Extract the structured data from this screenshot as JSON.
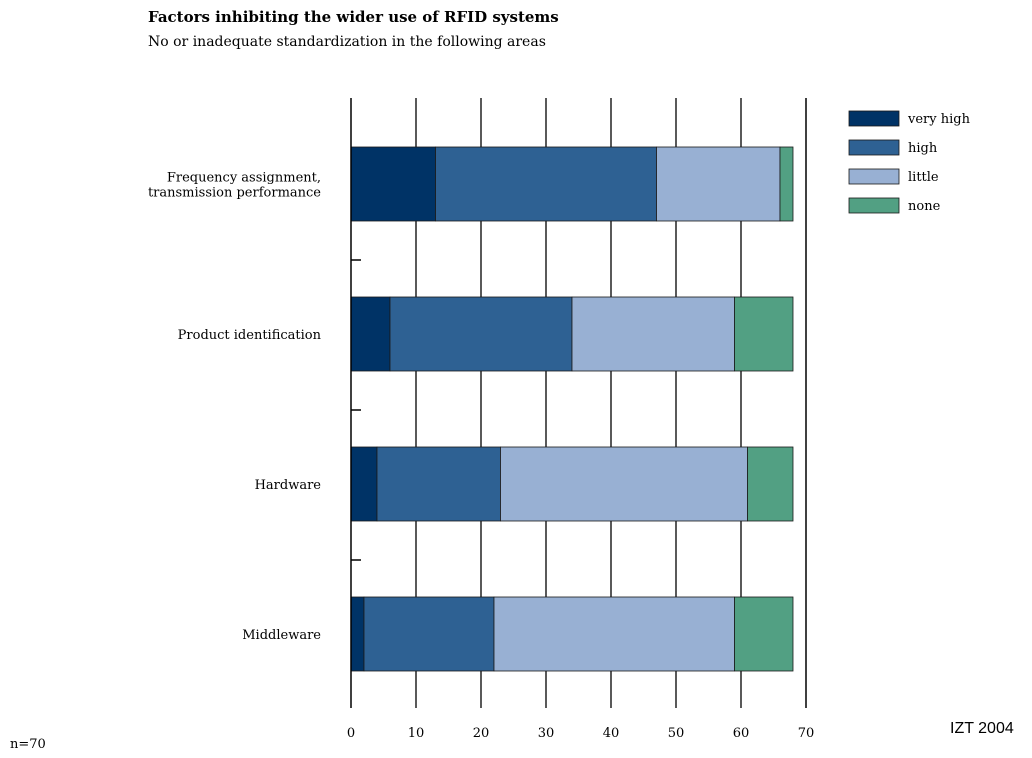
{
  "chart_data": {
    "type": "bar",
    "orientation": "horizontal",
    "stacked": true,
    "title": "Factors inhibiting the wider use of RFID systems",
    "subtitle": "No or inadequate standardization in the following areas",
    "categories": [
      [
        "Frequency assignment,",
        "transmission performance"
      ],
      [
        "Product identification"
      ],
      [
        "Hardware"
      ],
      [
        "Middleware"
      ]
    ],
    "series": [
      {
        "name": "very high",
        "color": "#003366",
        "values": [
          13,
          6,
          4,
          2
        ]
      },
      {
        "name": "high",
        "color": "#2e6193",
        "values": [
          34,
          28,
          19,
          20
        ]
      },
      {
        "name": "little",
        "color": "#98b0d3",
        "values": [
          19,
          25,
          38,
          37
        ]
      },
      {
        "name": "none",
        "color": "#52a083",
        "values": [
          2,
          9,
          7,
          9
        ]
      }
    ],
    "xlim": [
      0,
      70
    ],
    "xticks": [
      0,
      10,
      20,
      30,
      40,
      50,
      60,
      70
    ],
    "xlabel": "",
    "ylabel": "",
    "grid": true,
    "legend": "top-right"
  },
  "footnotes": {
    "left": "n=70",
    "right": "IZT 2004"
  }
}
